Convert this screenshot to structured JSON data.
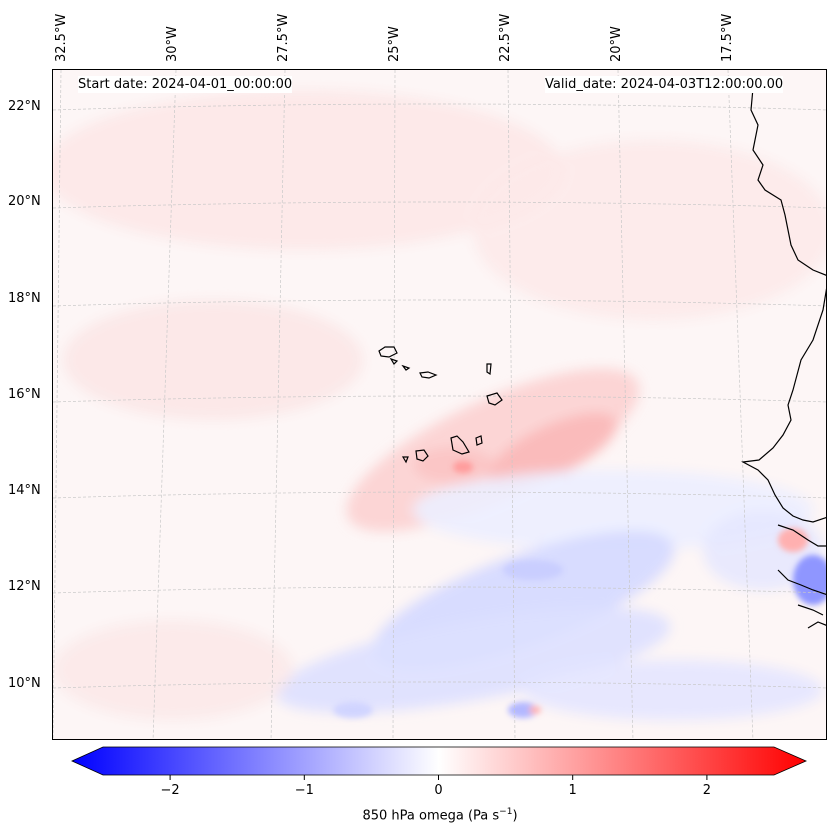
{
  "header": {
    "start_date": "Start date: 2024-04-01_00:00:00",
    "valid_date": "Valid_date: 2024-04-03T12:00:00.00"
  },
  "axes": {
    "lon_labels": [
      "32.5°W",
      "30°W",
      "27.5°W",
      "25°W",
      "22.5°W",
      "20°W",
      "17.5°W"
    ],
    "lat_labels": [
      "22°N",
      "20°N",
      "18°N",
      "16°N",
      "14°N",
      "12°N",
      "10°N"
    ]
  },
  "colorbar": {
    "ticks": [
      "−2",
      "−1",
      "0",
      "1",
      "2"
    ],
    "tick_values": [
      -2,
      -1,
      0,
      1,
      2
    ],
    "range": [
      -2.5,
      2.5
    ],
    "label": "850 hPa omega (Pa s",
    "label_sup": "−1",
    "label_end": ")",
    "colors": {
      "neg": "#0000ff",
      "mid": "#ffffff",
      "pos": "#ff0000"
    }
  },
  "chart_data": {
    "type": "heatmap",
    "title": "850 hPa omega",
    "variable": "850 hPa omega (Pa s-1)",
    "lon_range": [
      -32.5,
      -15
    ],
    "lat_range": [
      9,
      22.5
    ],
    "zones": [
      {
        "name": "subsidence band over Cape Verde",
        "sign": "positive",
        "value": 0.6
      },
      {
        "name": "ascent band south-east",
        "sign": "negative",
        "value": -0.8
      },
      {
        "name": "strong ascent near coast 12°N",
        "sign": "negative",
        "value": -1.3
      }
    ]
  }
}
